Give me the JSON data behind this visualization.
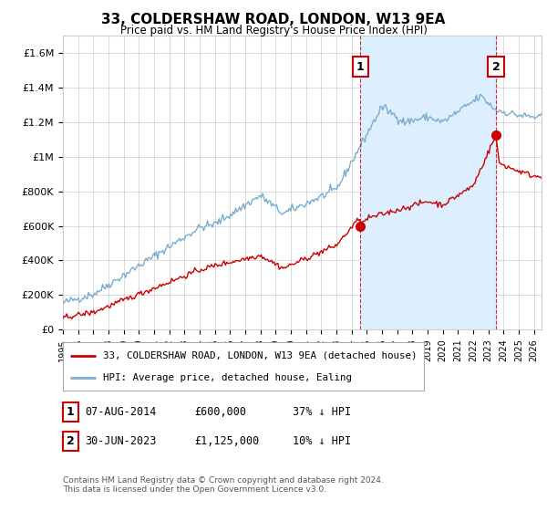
{
  "title": "33, COLDERSHAW ROAD, LONDON, W13 9EA",
  "subtitle": "Price paid vs. HM Land Registry's House Price Index (HPI)",
  "ylim": [
    0,
    1700000
  ],
  "xlim_start": 1995,
  "xlim_end": 2026.5,
  "yticks": [
    0,
    200000,
    400000,
    600000,
    800000,
    1000000,
    1200000,
    1400000,
    1600000
  ],
  "ytick_labels": [
    "£0",
    "£200K",
    "£400K",
    "£600K",
    "£800K",
    "£1M",
    "£1.2M",
    "£1.4M",
    "£1.6M"
  ],
  "hpi_color": "#7aadcf",
  "price_color": "#cc0000",
  "shade_color": "#ddeeff",
  "sale1_date": 2014.58,
  "sale1_price": 600000,
  "sale1_label": "1",
  "sale2_date": 2023.5,
  "sale2_price": 1125000,
  "sale2_label": "2",
  "legend_line1": "33, COLDERSHAW ROAD, LONDON, W13 9EA (detached house)",
  "legend_line2": "HPI: Average price, detached house, Ealing",
  "table_row1": [
    "1",
    "07-AUG-2014",
    "£600,000",
    "37% ↓ HPI"
  ],
  "table_row2": [
    "2",
    "30-JUN-2023",
    "£1,125,000",
    "10% ↓ HPI"
  ],
  "footnote": "Contains HM Land Registry data © Crown copyright and database right 2024.\nThis data is licensed under the Open Government Licence v3.0.",
  "background_color": "#ffffff",
  "grid_color": "#cccccc"
}
